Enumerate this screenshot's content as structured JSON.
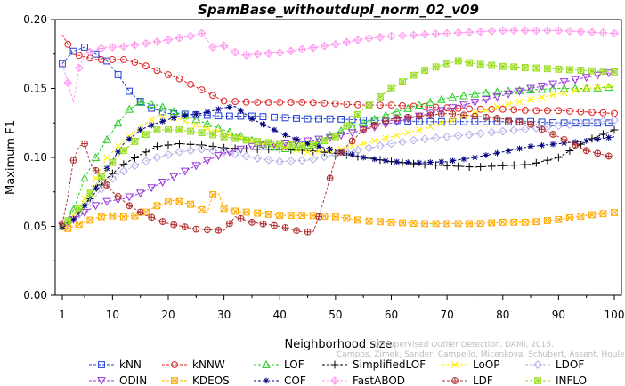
{
  "chart_data": {
    "type": "line",
    "title": "SpamBase_withoutdupl_norm_02_v09",
    "xlabel": "Neighborhood size",
    "ylabel": "Maximum F1",
    "xlim": [
      1,
      100
    ],
    "ylim": [
      0,
      0.2
    ],
    "xticks": [
      "1",
      "10",
      "20",
      "30",
      "40",
      "50",
      "60",
      "70",
      "80",
      "90",
      "100"
    ],
    "yticks": [
      "0.00",
      "0.05",
      "0.10",
      "0.15",
      "0.20"
    ],
    "grid": false,
    "legend_position": "bottom",
    "watermark": [
      "Unsupervised Outlier Detection. DAMI, 2015.",
      "Campos, Zimek, Sander, Campello, Micenkova, Schubert, Assent, Houle"
    ],
    "series": [
      {
        "name": "kNN",
        "color": "#1f3fd6",
        "marker": "square",
        "x": [
          1,
          3,
          5,
          7,
          9,
          11,
          13,
          16,
          20,
          25,
          30,
          35,
          40,
          45,
          50,
          55,
          60,
          65,
          70,
          75,
          80,
          85,
          90,
          95,
          100
        ],
        "y": [
          0.168,
          0.177,
          0.18,
          0.175,
          0.17,
          0.16,
          0.148,
          0.137,
          0.132,
          0.131,
          0.13,
          0.13,
          0.129,
          0.128,
          0.128,
          0.127,
          0.127,
          0.126,
          0.126,
          0.126,
          0.126,
          0.126,
          0.125,
          0.125,
          0.125
        ]
      },
      {
        "name": "kNNW",
        "color": "#e02020",
        "marker": "circle",
        "x": [
          1,
          3,
          5,
          7,
          9,
          12,
          15,
          18,
          22,
          26,
          30,
          35,
          40,
          45,
          50,
          55,
          60,
          65,
          70,
          75,
          80,
          85,
          90,
          95,
          100
        ],
        "y": [
          0.189,
          0.175,
          0.173,
          0.171,
          0.171,
          0.171,
          0.168,
          0.163,
          0.157,
          0.149,
          0.141,
          0.14,
          0.14,
          0.14,
          0.139,
          0.138,
          0.138,
          0.137,
          0.136,
          0.135,
          0.135,
          0.134,
          0.134,
          0.133,
          0.132
        ]
      },
      {
        "name": "LOF",
        "color": "#22cc22",
        "marker": "triangle-up",
        "x": [
          1,
          3,
          5,
          7,
          9,
          11,
          13,
          15,
          18,
          22,
          26,
          30,
          34,
          38,
          42,
          46,
          50,
          55,
          60,
          65,
          70,
          75,
          80,
          85,
          90,
          95,
          100
        ],
        "y": [
          0.05,
          0.062,
          0.085,
          0.1,
          0.113,
          0.125,
          0.135,
          0.14,
          0.138,
          0.132,
          0.126,
          0.12,
          0.114,
          0.108,
          0.106,
          0.11,
          0.118,
          0.125,
          0.132,
          0.138,
          0.143,
          0.146,
          0.148,
          0.149,
          0.15,
          0.15,
          0.151
        ]
      },
      {
        "name": "SimplifiedLOF",
        "color": "#000000",
        "marker": "plus",
        "x": [
          1,
          3,
          5,
          7,
          9,
          12,
          15,
          18,
          22,
          26,
          30,
          35,
          40,
          45,
          50,
          55,
          60,
          65,
          70,
          75,
          80,
          85,
          90,
          95,
          100
        ],
        "y": [
          0.05,
          0.055,
          0.065,
          0.075,
          0.085,
          0.095,
          0.102,
          0.108,
          0.11,
          0.109,
          0.107,
          0.106,
          0.106,
          0.105,
          0.103,
          0.1,
          0.097,
          0.095,
          0.094,
          0.093,
          0.094,
          0.095,
          0.1,
          0.112,
          0.12
        ]
      },
      {
        "name": "LoOP",
        "color": "#ffee00",
        "marker": "x",
        "x": [
          1,
          3,
          5,
          7,
          9,
          12,
          15,
          18,
          22,
          26,
          30,
          35,
          40,
          45,
          50,
          55,
          60,
          65,
          70,
          75,
          80,
          85,
          90,
          95,
          100
        ],
        "y": [
          0.05,
          0.058,
          0.07,
          0.085,
          0.1,
          0.112,
          0.122,
          0.13,
          0.128,
          0.122,
          0.118,
          0.112,
          0.108,
          0.104,
          0.105,
          0.11,
          0.115,
          0.12,
          0.126,
          0.132,
          0.138,
          0.142,
          0.146,
          0.15,
          0.152
        ]
      },
      {
        "name": "LDOF",
        "color": "#b0b0e8",
        "marker": "diamond",
        "x": [
          1,
          3,
          5,
          7,
          9,
          12,
          15,
          18,
          22,
          26,
          30,
          35,
          40,
          45,
          50,
          55,
          60,
          65,
          70,
          75,
          80,
          85,
          90,
          95,
          100
        ],
        "y": [
          0.05,
          0.055,
          0.063,
          0.072,
          0.082,
          0.09,
          0.096,
          0.1,
          0.104,
          0.106,
          0.104,
          0.1,
          0.097,
          0.098,
          0.102,
          0.106,
          0.11,
          0.113,
          0.115,
          0.117,
          0.119,
          0.121,
          0.123,
          0.125,
          0.127
        ]
      },
      {
        "name": "ODIN",
        "color": "#9933dd",
        "marker": "triangle-down",
        "x": [
          1,
          3,
          5,
          7,
          9,
          12,
          15,
          18,
          22,
          26,
          30,
          35,
          40,
          45,
          50,
          55,
          60,
          65,
          70,
          75,
          80,
          85,
          90,
          95,
          100
        ],
        "y": [
          0.05,
          0.055,
          0.06,
          0.065,
          0.068,
          0.07,
          0.074,
          0.08,
          0.088,
          0.096,
          0.103,
          0.108,
          0.11,
          0.112,
          0.115,
          0.12,
          0.125,
          0.13,
          0.135,
          0.14,
          0.145,
          0.15,
          0.154,
          0.158,
          0.162
        ]
      },
      {
        "name": "KDEOS",
        "color": "#ffaa00",
        "marker": "square-x",
        "x": [
          1,
          3,
          5,
          7,
          9,
          12,
          15,
          18,
          21,
          24,
          27,
          28,
          29,
          30,
          32,
          35,
          40,
          45,
          50,
          55,
          60,
          65,
          70,
          75,
          80,
          85,
          90,
          95,
          100
        ],
        "y": [
          0.047,
          0.05,
          0.053,
          0.056,
          0.058,
          0.057,
          0.058,
          0.065,
          0.069,
          0.066,
          0.06,
          0.073,
          0.074,
          0.063,
          0.061,
          0.06,
          0.058,
          0.058,
          0.057,
          0.054,
          0.053,
          0.052,
          0.052,
          0.052,
          0.053,
          0.053,
          0.055,
          0.058,
          0.06
        ]
      },
      {
        "name": "COF",
        "color": "#000080",
        "marker": "star",
        "x": [
          1,
          3,
          5,
          7,
          9,
          12,
          15,
          18,
          22,
          26,
          30,
          32,
          35,
          40,
          45,
          50,
          55,
          60,
          65,
          70,
          75,
          80,
          85,
          90,
          95,
          100
        ],
        "y": [
          0.05,
          0.055,
          0.065,
          0.078,
          0.092,
          0.11,
          0.12,
          0.125,
          0.13,
          0.132,
          0.136,
          0.137,
          0.128,
          0.118,
          0.11,
          0.105,
          0.1,
          0.097,
          0.096,
          0.097,
          0.1,
          0.104,
          0.108,
          0.11,
          0.112,
          0.115
        ]
      },
      {
        "name": "FastABOD",
        "color": "#ff99ee",
        "marker": "diamond-plus",
        "x": [
          1,
          3,
          4,
          5,
          7,
          9,
          11,
          13,
          15,
          18,
          21,
          24,
          26,
          28,
          30,
          33,
          36,
          40,
          45,
          50,
          55,
          60,
          65,
          70,
          75,
          80,
          85,
          90,
          95,
          100
        ],
        "y": [
          0.168,
          0.14,
          0.165,
          0.175,
          0.178,
          0.18,
          0.18,
          0.181,
          0.182,
          0.184,
          0.186,
          0.188,
          0.19,
          0.18,
          0.181,
          0.174,
          0.175,
          0.176,
          0.179,
          0.182,
          0.186,
          0.188,
          0.189,
          0.19,
          0.191,
          0.192,
          0.192,
          0.192,
          0.191,
          0.19
        ]
      },
      {
        "name": "LDF",
        "color": "#b03030",
        "marker": "circle-plus",
        "x": [
          1,
          2,
          3,
          4,
          5,
          6,
          8,
          10,
          13,
          16,
          20,
          25,
          30,
          32,
          35,
          40,
          44,
          46,
          47,
          48,
          50,
          55,
          60,
          65,
          70,
          75,
          80,
          85,
          90,
          95,
          100
        ],
        "y": [
          0.052,
          0.072,
          0.098,
          0.108,
          0.11,
          0.096,
          0.085,
          0.075,
          0.065,
          0.058,
          0.052,
          0.048,
          0.047,
          0.057,
          0.053,
          0.05,
          0.046,
          0.046,
          0.057,
          0.07,
          0.1,
          0.12,
          0.128,
          0.13,
          0.132,
          0.13,
          0.128,
          0.124,
          0.115,
          0.105,
          0.1
        ]
      },
      {
        "name": "INFLO",
        "color": "#99dd22",
        "marker": "square-star",
        "x": [
          1,
          3,
          5,
          7,
          9,
          12,
          15,
          18,
          22,
          26,
          30,
          35,
          40,
          45,
          50,
          55,
          60,
          65,
          70,
          72,
          75,
          80,
          85,
          90,
          95,
          100
        ],
        "y": [
          0.05,
          0.058,
          0.068,
          0.08,
          0.092,
          0.105,
          0.115,
          0.12,
          0.12,
          0.118,
          0.115,
          0.112,
          0.11,
          0.108,
          0.115,
          0.135,
          0.15,
          0.162,
          0.168,
          0.17,
          0.168,
          0.166,
          0.165,
          0.164,
          0.163,
          0.162
        ]
      }
    ]
  }
}
